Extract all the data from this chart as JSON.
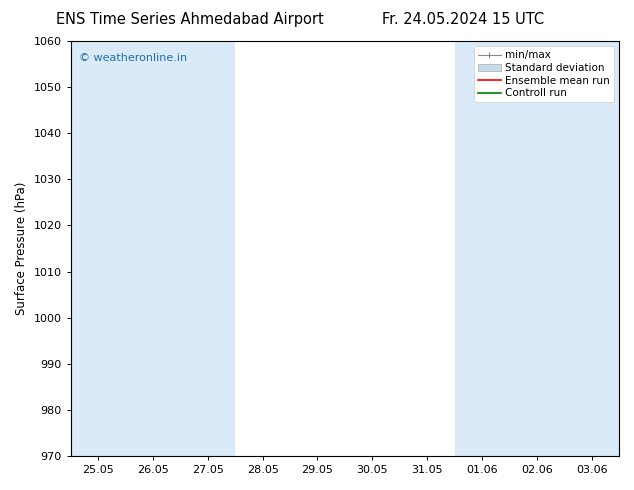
{
  "title_left": "ENS Time Series Ahmedabad Airport",
  "title_right": "Fr. 24.05.2024 15 UTC",
  "ylabel": "Surface Pressure (hPa)",
  "ylim": [
    970,
    1060
  ],
  "yticks": [
    970,
    980,
    990,
    1000,
    1010,
    1020,
    1030,
    1040,
    1050,
    1060
  ],
  "x_tick_labels": [
    "25.05",
    "26.05",
    "27.05",
    "28.05",
    "29.05",
    "30.05",
    "31.05",
    "01.06",
    "02.06",
    "03.06"
  ],
  "shaded_band_color": "#daeaf8",
  "shaded_bands_x": [
    0,
    1,
    2,
    7,
    8,
    9
  ],
  "watermark_text": "© weatheronline.in",
  "watermark_color": "#1a6fad",
  "legend_items": [
    {
      "label": "min/max",
      "color": "#aaaaaa",
      "style": "minmax"
    },
    {
      "label": "Standard deviation",
      "color": "#c8d8e8",
      "style": "stddev"
    },
    {
      "label": "Ensemble mean run",
      "color": "red",
      "style": "line"
    },
    {
      "label": "Controll run",
      "color": "green",
      "style": "line"
    }
  ],
  "bg_color": "#ffffff",
  "title_fontsize": 10.5,
  "axis_fontsize": 8.5,
  "tick_fontsize": 8.0,
  "legend_fontsize": 7.5,
  "watermark_fontsize": 8.0,
  "fig_width": 6.34,
  "fig_height": 4.9,
  "dpi": 100
}
